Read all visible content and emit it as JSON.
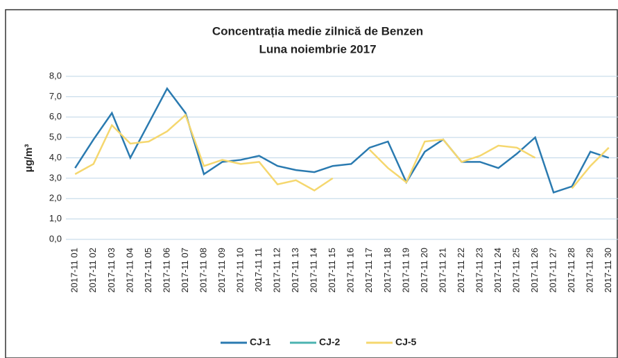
{
  "chart_data": {
    "type": "line",
    "title": "Concentrația medie zilnică de Benzen",
    "subtitle": "Luna noiembrie 2017",
    "y_label": "μg/m³",
    "categories": [
      "2017-11 01",
      "2017-11 02",
      "2017-11 03",
      "2017-11 04",
      "2017-11 05",
      "2017-11 06",
      "2017-11 07",
      "2017-11 08",
      "2017-11 09",
      "2017-11 10",
      "2017-11 11",
      "2017-11 12",
      "2017-11 13",
      "2017-11 14",
      "2017-11 15",
      "2017-11 16",
      "2017-11 17",
      "2017-11 18",
      "2017-11 19",
      "2017-11 20",
      "2017-11 21",
      "2017-11 22",
      "2017-11 23",
      "2017-11 24",
      "2017-11 25",
      "2017-11 26",
      "2017-11 27",
      "2017-11 28",
      "2017-11 29",
      "2017-11 30"
    ],
    "series": [
      {
        "name": "CJ-1",
        "color": "#2a7ab0",
        "values": [
          3.5,
          4.9,
          6.2,
          4.0,
          5.7,
          7.4,
          6.2,
          3.2,
          3.8,
          3.9,
          4.1,
          3.6,
          3.4,
          3.3,
          3.6,
          3.7,
          4.5,
          4.8,
          2.8,
          4.3,
          4.9,
          3.8,
          3.8,
          3.5,
          4.2,
          5.0,
          2.3,
          2.6,
          4.3,
          4.0
        ]
      },
      {
        "name": "CJ-2",
        "color": "#4bb3b0",
        "values": [
          null,
          null,
          null,
          null,
          null,
          null,
          null,
          null,
          null,
          null,
          null,
          null,
          null,
          null,
          null,
          null,
          null,
          null,
          null,
          null,
          null,
          null,
          null,
          null,
          null,
          null,
          null,
          null,
          null,
          null
        ]
      },
      {
        "name": "CJ-5",
        "color": "#f5d76e",
        "values": [
          3.2,
          3.7,
          5.6,
          4.7,
          4.8,
          5.3,
          6.1,
          3.6,
          3.9,
          3.7,
          3.8,
          2.7,
          2.9,
          2.4,
          3.0,
          null,
          4.4,
          3.5,
          2.8,
          4.8,
          4.9,
          3.8,
          4.1,
          4.6,
          4.5,
          4.0,
          null,
          2.5,
          3.6,
          4.5
        ]
      }
    ],
    "ylim": [
      0,
      8
    ],
    "yticks": [
      {
        "value": 0,
        "label": "0,0"
      },
      {
        "value": 1,
        "label": "1,0"
      },
      {
        "value": 2,
        "label": "2,0"
      },
      {
        "value": 3,
        "label": "3,0"
      },
      {
        "value": 4,
        "label": "4,0"
      },
      {
        "value": 5,
        "label": "5,0"
      },
      {
        "value": 6,
        "label": "6,0"
      },
      {
        "value": 7,
        "label": "7,0"
      },
      {
        "value": 8,
        "label": "8,0"
      }
    ],
    "grid": true,
    "legend": "bottom"
  }
}
